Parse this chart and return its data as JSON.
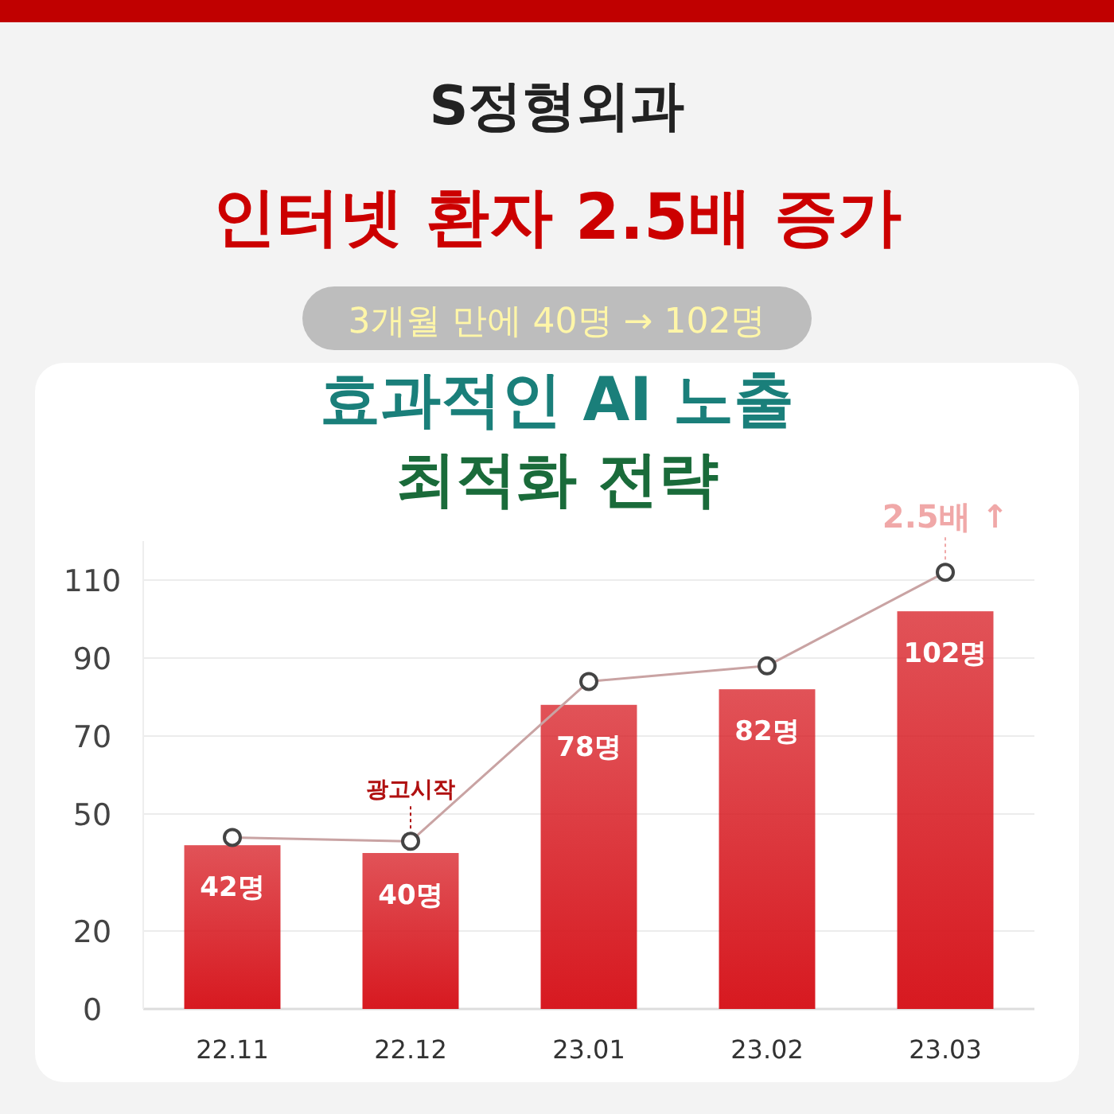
{
  "chart_data": {
    "type": "bar",
    "title": "S정형외과",
    "subtitle": "인터넷 환자 2.5배 증가",
    "annotations": [
      "3개월 만에 40명 → 102명",
      "효과적인 AI 노출",
      "최적화 전략",
      {
        "text": "2.5배 ↑",
        "x": "23.03",
        "y": 112
      },
      {
        "text": "광고시작",
        "x": "22.12",
        "y": 43
      }
    ],
    "categories": [
      "22.11",
      "22.12",
      "23.01",
      "23.02",
      "23.03"
    ],
    "series": [
      {
        "color": "#d71920",
        "values": [
          42,
          40,
          78,
          82,
          102
        ],
        "value_labels": [
          "42명",
          "40명",
          "78명",
          "82명",
          "102명"
        ]
      },
      {
        "type": "line",
        "color": "#c9a3a3",
        "values": [
          44,
          43,
          84,
          88,
          112
        ]
      }
    ],
    "ylim": [
      0,
      120
    ],
    "yticks": [
      0,
      20,
      50,
      70,
      90,
      110
    ],
    "grid": "y",
    "marker": "circle",
    "line_style": "solid"
  }
}
